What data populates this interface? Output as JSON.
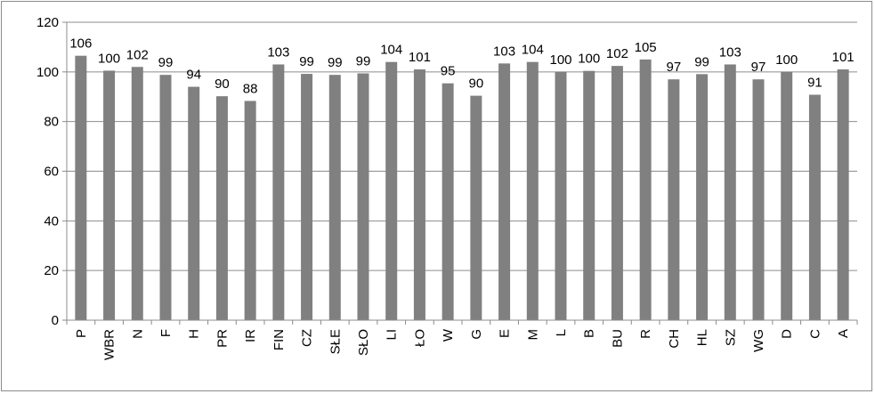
{
  "chart_data": {
    "type": "bar",
    "title": "",
    "xlabel": "",
    "ylabel": "",
    "ylim": [
      0,
      120
    ],
    "yticks": [
      0,
      20,
      40,
      60,
      80,
      100,
      120
    ],
    "grid": "horizontal",
    "categories": [
      "P",
      "WBR",
      "N",
      "F",
      "H",
      "PR",
      "IR",
      "FIN",
      "CZ",
      "SŁE",
      "SŁO",
      "LI",
      "ŁO",
      "W",
      "G",
      "E",
      "M",
      "L",
      "B",
      "BU",
      "R",
      "CH",
      "HL",
      "SZ",
      "WG",
      "D",
      "C",
      "A"
    ],
    "values": [
      106.5,
      100.5,
      102,
      98.8,
      94,
      90.2,
      88.3,
      103,
      99.2,
      98.8,
      99.4,
      104,
      101,
      95.4,
      90.4,
      103.4,
      104,
      100,
      100.4,
      102.4,
      105,
      97,
      99.1,
      103,
      97,
      100,
      90.8,
      101
    ],
    "labels": [
      "106",
      "100",
      "102",
      "99",
      "94",
      "90",
      "88",
      "103",
      "99",
      "99",
      "99",
      "104",
      "101",
      "95",
      "90",
      "103",
      "104",
      "100",
      "100",
      "102",
      "105",
      "97",
      "99",
      "103",
      "97",
      "100",
      "91",
      "101"
    ],
    "bar_color": "#808080",
    "gridline_color": "#8c8c8c"
  }
}
